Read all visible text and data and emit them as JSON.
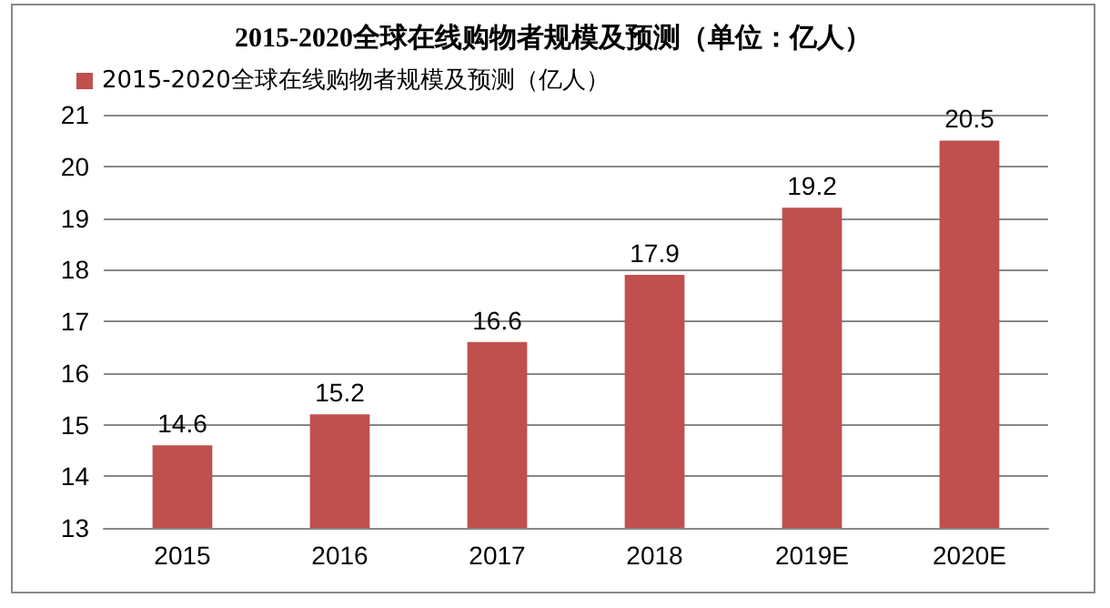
{
  "chart_data": {
    "type": "bar",
    "title": "2015-2020全球在线购物者规模及预测（单位：亿人）",
    "categories": [
      "2015",
      "2016",
      "2017",
      "2018",
      "2019E",
      "2020E"
    ],
    "series": [
      {
        "name": "2015-2020全球在线购物者规模及预测（亿人）",
        "color": "#c0504d",
        "values": [
          14.6,
          15.2,
          16.6,
          17.9,
          19.2,
          20.5
        ]
      }
    ],
    "ylim": [
      13,
      21
    ],
    "yticks": [
      13,
      14,
      15,
      16,
      17,
      18,
      19,
      20,
      21
    ],
    "grid": "y",
    "legend": "top left",
    "data_labels": true
  }
}
